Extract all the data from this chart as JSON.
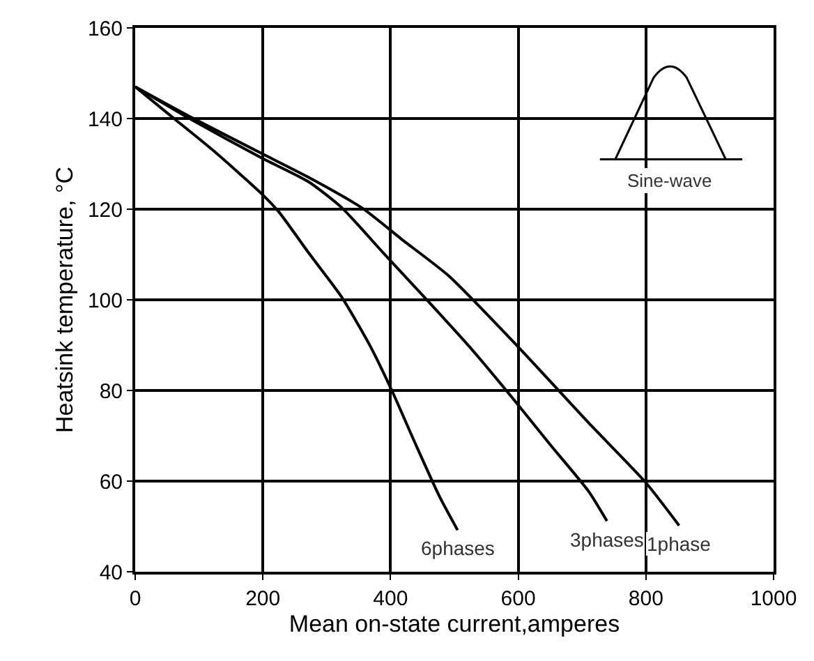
{
  "chart_data": {
    "type": "line",
    "xlabel": "Mean on-state current,amperes",
    "ylabel": "Heatsink temperature, °C",
    "xlim": [
      0,
      1000
    ],
    "xticks": [
      0,
      200,
      400,
      600,
      800,
      1000
    ],
    "ylim": [
      40,
      160
    ],
    "yticks": [
      40,
      60,
      80,
      100,
      120,
      140,
      160
    ],
    "grid": true,
    "legend": false,
    "marker": "none",
    "line_style": "solid",
    "annotations": [
      "Sine-wave"
    ],
    "series": [
      {
        "name": "6phases",
        "color": "#000000",
        "x": [
          0,
          60,
          126,
          198,
          225,
          272,
          323,
          367,
          402,
          440,
          476,
          505
        ],
        "values": [
          147,
          140.1,
          132.5,
          123.4,
          119.4,
          110.3,
          100.7,
          90.1,
          80,
          67.9,
          56.8,
          49.2
        ]
      },
      {
        "name": "3phases",
        "color": "#000000",
        "x": [
          0,
          90,
          198,
          272,
          323,
          389,
          462,
          527,
          593,
          651,
          710,
          739
        ],
        "values": [
          147,
          139.6,
          131.3,
          126,
          120.4,
          110.3,
          99.2,
          89.1,
          78,
          67.9,
          57.8,
          51.2
        ]
      },
      {
        "name": "1phase",
        "color": "#000000",
        "x": [
          0,
          90,
          198,
          272,
          356,
          418,
          491,
          600,
          710,
          799,
          852
        ],
        "values": [
          147,
          140.1,
          132.3,
          127,
          120.2,
          113.3,
          105.3,
          89.6,
          72.9,
          59.8,
          50.2
        ]
      }
    ]
  }
}
